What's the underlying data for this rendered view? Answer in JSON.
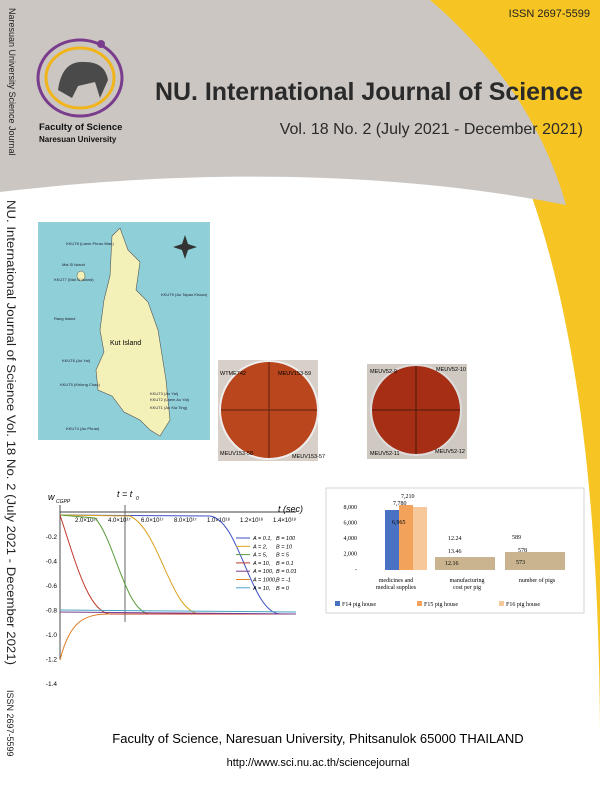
{
  "header": {
    "issn": "ISSN 2697-5599",
    "spine_top": "Naresuan University Science Journal",
    "logo_line1": "Faculty of Science",
    "logo_line2": "Naresuan University",
    "title": "NU. International Journal of Science",
    "issue": "Vol. 18 No. 2  (July 2021 - December 2021)"
  },
  "spine": {
    "text": "NU. International Journal of Science Vol. 18 No. 2 (July 2021 - December 2021)",
    "issn": "ISSN 2697-5599"
  },
  "map": {
    "island": "Kut Island",
    "labels": [
      "KKUT8 (Laem Phrao Wan)",
      "Mai Si Island",
      "KKUT7 (Mai Si Island)",
      "Rang Island",
      "KKUT6 (Ao Yai)",
      "KKUT5 (Khlong Chao)",
      "KKUT4 (Ao Phrao)",
      "KKUT3 (Ao Yai)",
      "KKUT2 (Laem Ao Yai)",
      "KKUT1 (Ao Kia Ting)",
      "KKUT9 (Ao Tapao Khoan)"
    ]
  },
  "dishes": {
    "left": [
      "WTME742",
      "MEUV153-59",
      "MEUV153-58",
      "MEUV153-57"
    ],
    "right": [
      "MEUV52-9",
      "MEUV52-10",
      "MEUV52-11",
      "MEUV52-12"
    ]
  },
  "line_chart": {
    "y_label": "w",
    "y_sub": "CGPP",
    "t_label": "t = t",
    "t_sub": "0",
    "x_label": "t (sec)",
    "x_ticks": [
      "2.0×10¹⁷",
      "4.0×10¹⁷",
      "6.0×10¹⁷",
      "8.0×10¹⁷",
      "1.0×10¹⁸",
      "1.2×10¹⁸",
      "1.4×10¹⁸"
    ],
    "y_ticks": [
      "-0.2",
      "-0.4",
      "-0.6",
      "-0.8",
      "-1.0",
      "-1.2",
      "-1.4"
    ],
    "legend": [
      [
        "A = 0.1,",
        "B = 100"
      ],
      [
        "A = 2,",
        "B = 10"
      ],
      [
        "A = 5,",
        "B = 5"
      ],
      [
        "A = 10,",
        "B = 0.1"
      ],
      [
        "A = 100,",
        "B = 0.01"
      ],
      [
        "A = 1000,",
        "B = -1"
      ],
      [
        "A = 10,",
        "B = 0"
      ]
    ]
  },
  "bar_chart": {
    "y_ticks": [
      "8,000",
      "6,000",
      "4,000",
      "2,000",
      "-"
    ],
    "categories": [
      [
        "medicines and",
        "medical supplies"
      ],
      [
        "manufacturing",
        "cost per pig"
      ],
      [
        "number of pigs"
      ]
    ],
    "value_labels": [
      [
        "6,965",
        "7,780",
        "7,210"
      ],
      [
        "12.16",
        "13.46",
        "12.24"
      ],
      [
        "573",
        "578",
        "589"
      ]
    ],
    "legend": [
      "F14 pig house",
      "F15 pig house",
      "F16 pig house"
    ]
  },
  "footer": {
    "address": "Faculty of Science, Naresuan University, Phitsanulok 65000 THAILAND",
    "url": "http://www.sci.nu.ac.th/sciencejournal"
  }
}
